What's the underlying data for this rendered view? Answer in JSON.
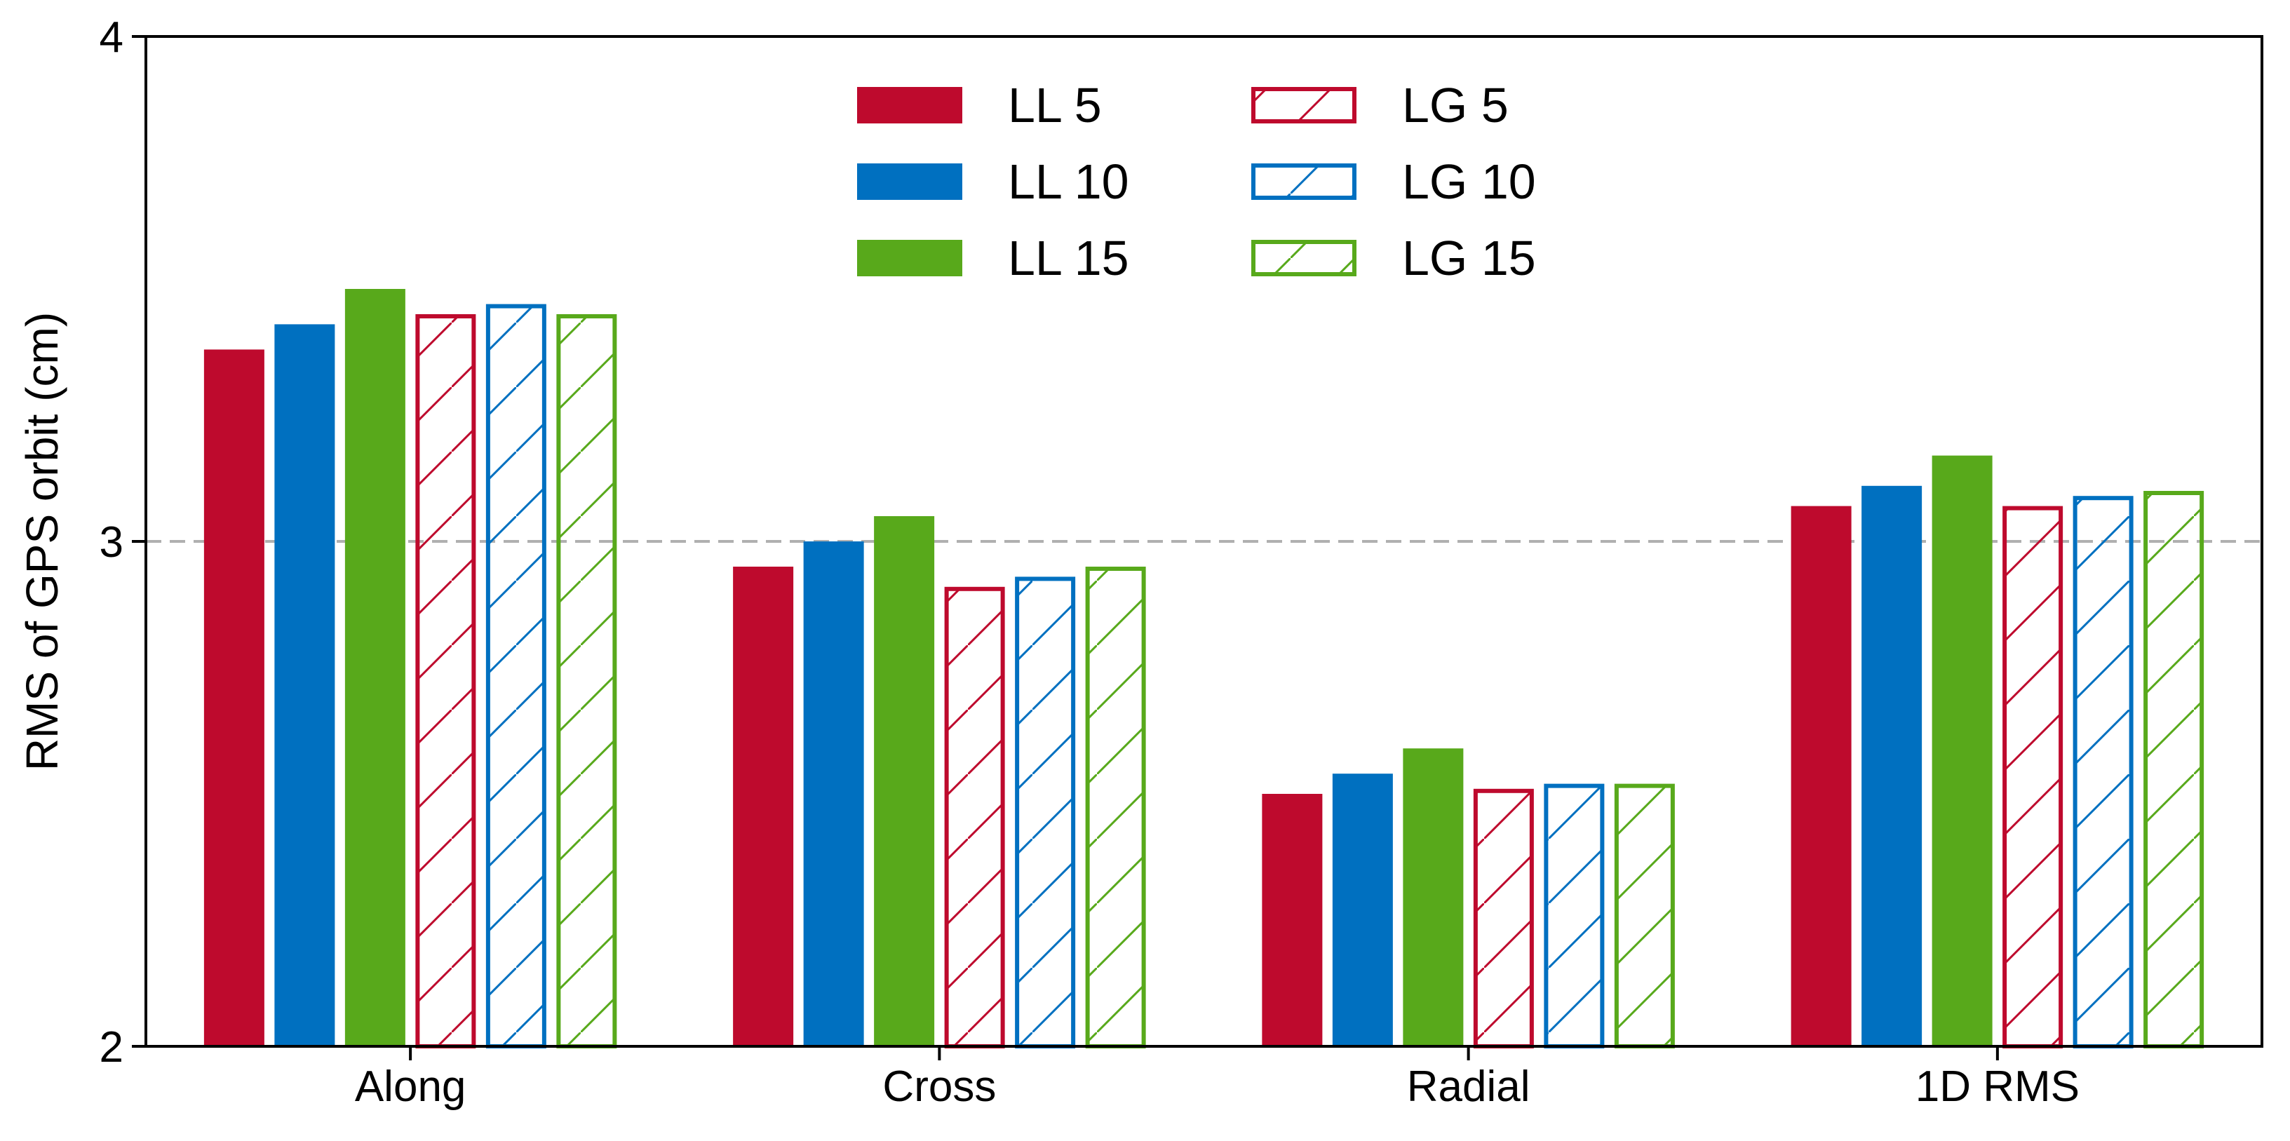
{
  "chart_data": {
    "type": "bar",
    "title": "",
    "xlabel": "",
    "ylabel": "RMS of GPS orbit (cm)",
    "ylim": [
      2,
      4
    ],
    "yticks": [
      "2",
      "3",
      "4"
    ],
    "ytick_values": [
      2,
      3,
      4
    ],
    "grid": "dashed horizontal lines at y = 2 and y = 3",
    "legend_position": "top-center",
    "categories": [
      "Along",
      "Cross",
      "Radial",
      "1D RMS"
    ],
    "series": [
      {
        "name": "LL 5",
        "style": "solid",
        "color": "#be0a2d",
        "values": [
          3.38,
          2.95,
          2.5,
          3.07
        ]
      },
      {
        "name": "LL 10",
        "style": "solid",
        "color": "#0070c0",
        "values": [
          3.43,
          3.0,
          2.54,
          3.11
        ]
      },
      {
        "name": "LL 15",
        "style": "solid",
        "color": "#58a91b",
        "values": [
          3.5,
          3.05,
          2.59,
          3.17
        ]
      },
      {
        "name": "LG 5",
        "style": "hatched",
        "color": "#be0a2d",
        "values": [
          3.45,
          2.91,
          2.51,
          3.07
        ]
      },
      {
        "name": "LG 10",
        "style": "hatched",
        "color": "#0070c0",
        "values": [
          3.47,
          2.93,
          2.52,
          3.09
        ]
      },
      {
        "name": "LG 15",
        "style": "hatched",
        "color": "#58a91b",
        "values": [
          3.45,
          2.95,
          2.52,
          3.1
        ]
      }
    ]
  }
}
